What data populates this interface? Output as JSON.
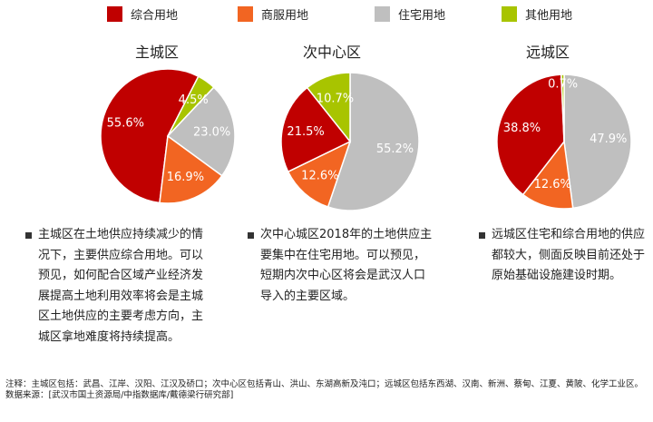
{
  "legend": [
    {
      "label": "综合用地",
      "color": "#c00000"
    },
    {
      "label": "商服用地",
      "color": "#f26522"
    },
    {
      "label": "住宅用地",
      "color": "#bfbfbf"
    },
    {
      "label": "其他用地",
      "color": "#a8c400"
    }
  ],
  "chart_data": [
    {
      "type": "pie",
      "title": "主城区",
      "slices": [
        {
          "category": "综合用地",
          "value": 55.6,
          "label": "55.6%"
        },
        {
          "category": "其他用地",
          "value": 4.5,
          "label": "4.5%"
        },
        {
          "category": "住宅用地",
          "value": 23.0,
          "label": "23.0%"
        },
        {
          "category": "商服用地",
          "value": 16.9,
          "label": "16.9%"
        }
      ]
    },
    {
      "type": "pie",
      "title": "次中心区",
      "slices": [
        {
          "category": "住宅用地",
          "value": 55.2,
          "label": "55.2%"
        },
        {
          "category": "商服用地",
          "value": 12.6,
          "label": "12.6%"
        },
        {
          "category": "综合用地",
          "value": 21.5,
          "label": "21.5%"
        },
        {
          "category": "其他用地",
          "value": 10.7,
          "label": "10.7%"
        }
      ]
    },
    {
      "type": "pie",
      "title": "远城区",
      "slices": [
        {
          "category": "住宅用地",
          "value": 47.9,
          "label": "47.9%"
        },
        {
          "category": "商服用地",
          "value": 12.6,
          "label": "12.6%"
        },
        {
          "category": "综合用地",
          "value": 38.8,
          "label": "38.8%"
        },
        {
          "category": "其他用地",
          "value": 0.7,
          "label": "0.7%"
        }
      ]
    }
  ],
  "bullets": [
    [
      "主城区在土地供应持续减少的情",
      "况下，主要供应综合用地。可以",
      "预见，如何配合区域产业经济发",
      "展提高土地利用效率将会是主城",
      "区土地供应的主要考虑方向，主",
      "城区拿地难度将持续提高。"
    ],
    [
      "次中心城区2018年的土地供应主",
      "要集中在住宅用地。可以预见，",
      "短期内次中心区将会是武汉人口",
      "导入的主要区域。"
    ],
    [
      "远城区住宅和综合用地的供应",
      "都较大，侧面反映目前还处于",
      "原始基础设施建设时期。"
    ]
  ],
  "notes": {
    "note": "注释：主城区包括：武昌、江岸、汉阳、江汉及硚口；次中心区包括青山、洪山、东湖高新及沌口；远城区包括东西湖、汉南、新洲、蔡甸、江夏、黄陂、化学工业区。",
    "source": "数据来源：[武汉市国土资源局/中指数据库/戴德梁行研究部]"
  }
}
